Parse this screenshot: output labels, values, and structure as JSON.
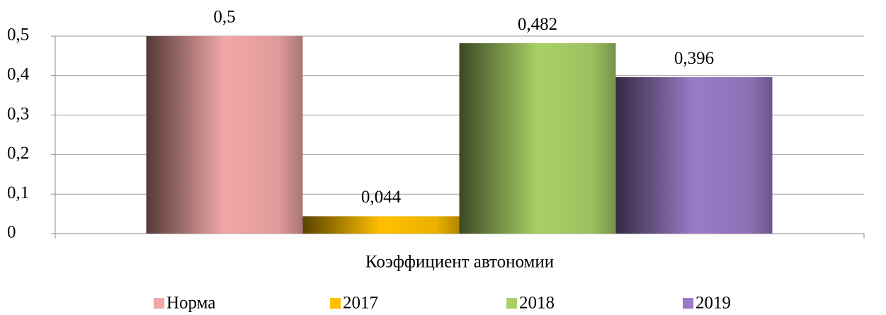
{
  "chart_data": {
    "type": "bar",
    "categories": [
      "Коэффициент автономии"
    ],
    "series": [
      {
        "name": "Норма",
        "color": "#f2a7a7",
        "values": [
          0.5
        ],
        "value_labels": [
          "0,5"
        ]
      },
      {
        "name": "2017",
        "color": "#ffc000",
        "values": [
          0.044
        ],
        "value_labels": [
          "0,044"
        ]
      },
      {
        "name": "2018",
        "color": "#a9d067",
        "values": [
          0.482
        ],
        "value_labels": [
          "0,482"
        ]
      },
      {
        "name": "2019",
        "color": "#9a7bc6",
        "values": [
          0.396
        ],
        "value_labels": [
          "0,396"
        ]
      }
    ],
    "ylim": [
      0,
      0.5
    ],
    "yticks": [
      0,
      {
        "value": 0.1,
        "label": "0,1"
      },
      {
        "value": 0.2,
        "label": "0,2"
      },
      {
        "value": 0.3,
        "label": "0,3"
      },
      {
        "value": 0.4,
        "label": "0,4"
      },
      {
        "value": 0.5,
        "label": "0,5"
      }
    ],
    "grid": true,
    "legend": "bottom"
  }
}
